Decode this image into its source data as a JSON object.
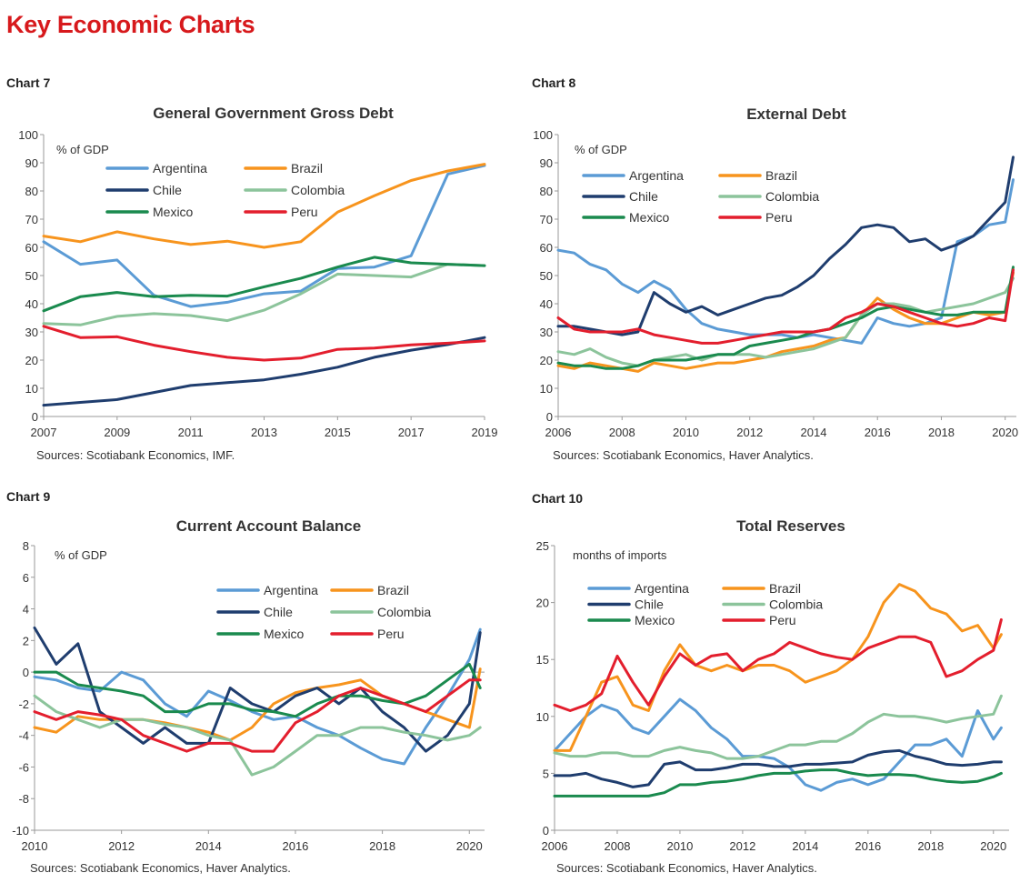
{
  "page_title": "Key Economic Charts",
  "charts": [
    {
      "label": "Chart 7",
      "source": "Sources: Scotiabank Economics, IMF."
    },
    {
      "label": "Chart 8",
      "source": "Sources: Scotiabank Economics, Haver Analytics."
    },
    {
      "label": "Chart 9",
      "source": "Sources: Scotiabank Economics, Haver Analytics."
    },
    {
      "label": "Chart 10",
      "source": "Sources: Scotiabank Economics, Haver Analytics."
    }
  ],
  "colors": {
    "Argentina": "#5b9bd5",
    "Brazil": "#f7941d",
    "Chile": "#1f3d6e",
    "Colombia": "#8cc49b",
    "Mexico": "#1a8a4e",
    "Peru": "#e31e2d",
    "title_red": "#d7191c"
  },
  "chart_data": [
    {
      "type": "line",
      "title": "General Government Gross Debt",
      "unit_label": "% of GDP",
      "xlim": [
        2007,
        2019
      ],
      "ylim": [
        0,
        100
      ],
      "y_ticks": [
        0,
        10,
        20,
        30,
        40,
        50,
        60,
        70,
        80,
        90,
        100
      ],
      "x_ticks": [
        "2007",
        "2009",
        "2011",
        "2013",
        "2015",
        "2017",
        "2019"
      ],
      "x": [
        2007,
        2008,
        2009,
        2010,
        2011,
        2012,
        2013,
        2014,
        2015,
        2016,
        2017,
        2018,
        2019
      ],
      "series": [
        {
          "name": "Argentina",
          "values": [
            62,
            54,
            55.5,
            43,
            39,
            40.5,
            43.5,
            44.5,
            52.5,
            53,
            57,
            86,
            89
          ]
        },
        {
          "name": "Brazil",
          "values": [
            64,
            62,
            65.5,
            63,
            61,
            62.2,
            60,
            62,
            72.5,
            78.3,
            83.7,
            87.1,
            89.5
          ]
        },
        {
          "name": "Chile",
          "values": [
            4,
            5,
            6,
            8.5,
            11,
            12,
            13,
            15,
            17.5,
            21,
            23.5,
            25.5,
            28
          ]
        },
        {
          "name": "Colombia",
          "values": [
            33,
            32.5,
            35.5,
            36.5,
            35.8,
            34,
            37.7,
            43.5,
            50.5,
            50,
            49.5,
            54,
            53.5
          ]
        },
        {
          "name": "Mexico",
          "values": [
            37.5,
            42.5,
            44,
            42.5,
            43,
            42.7,
            46,
            49,
            53,
            56.5,
            54.5,
            54,
            53.5
          ]
        },
        {
          "name": "Peru",
          "values": [
            32,
            28,
            28.3,
            25.3,
            23,
            21,
            20,
            20.7,
            23.8,
            24.3,
            25.4,
            26,
            26.8
          ]
        }
      ]
    },
    {
      "type": "line",
      "title": "External Debt",
      "unit_label": "% of GDP",
      "xlim": [
        2006,
        2020.35
      ],
      "ylim": [
        0,
        100
      ],
      "y_ticks": [
        0,
        10,
        20,
        30,
        40,
        50,
        60,
        70,
        80,
        90,
        100
      ],
      "x_ticks": [
        "2006",
        "2008",
        "2010",
        "2012",
        "2014",
        "2016",
        "2018",
        "2020"
      ],
      "x": [
        2006,
        2006.5,
        2007,
        2007.5,
        2008,
        2008.5,
        2009,
        2009.5,
        2010,
        2010.5,
        2011,
        2011.5,
        2012,
        2012.5,
        2013,
        2013.5,
        2014,
        2014.5,
        2015,
        2015.5,
        2016,
        2016.5,
        2017,
        2017.5,
        2018,
        2018.5,
        2019,
        2019.5,
        2020,
        2020.25
      ],
      "series": [
        {
          "name": "Argentina",
          "values": [
            59,
            58,
            54,
            52,
            47,
            44,
            48,
            45,
            38,
            33,
            31,
            30,
            29,
            29,
            29,
            28,
            29,
            28,
            27,
            26,
            35,
            33,
            32,
            33,
            35,
            62,
            64,
            68,
            69,
            84
          ]
        },
        {
          "name": "Brazil",
          "values": [
            18,
            17,
            19,
            18,
            17,
            16,
            19,
            18,
            17,
            18,
            19,
            19,
            20,
            21,
            23,
            24,
            25,
            27,
            28,
            36,
            42,
            38,
            35,
            33,
            33,
            35,
            37,
            36,
            37,
            51
          ]
        },
        {
          "name": "Chile",
          "values": [
            32,
            32,
            31,
            30,
            29,
            30,
            44,
            40,
            37,
            39,
            36,
            38,
            40,
            42,
            43,
            46,
            50,
            56,
            61,
            67,
            68,
            67,
            62,
            63,
            59,
            61,
            64,
            70,
            76,
            92
          ]
        },
        {
          "name": "Colombia",
          "values": [
            23,
            22,
            24,
            21,
            19,
            18,
            20,
            21,
            22,
            20,
            22,
            22,
            22,
            21,
            22,
            23,
            24,
            26,
            28,
            36,
            40,
            40,
            39,
            37,
            38,
            39,
            40,
            42,
            44,
            49
          ]
        },
        {
          "name": "Mexico",
          "values": [
            19,
            18,
            18,
            17,
            17,
            18,
            20,
            20,
            20,
            21,
            22,
            22,
            25,
            26,
            27,
            28,
            30,
            31,
            33,
            35,
            38,
            39,
            38,
            37,
            36,
            36,
            37,
            37,
            37,
            53
          ]
        },
        {
          "name": "Peru",
          "values": [
            35,
            31,
            30,
            30,
            30,
            31,
            29,
            28,
            27,
            26,
            26,
            27,
            28,
            29,
            30,
            30,
            30,
            31,
            35,
            37,
            40,
            39,
            37,
            35,
            33,
            32,
            33,
            35,
            34,
            52
          ]
        }
      ]
    },
    {
      "type": "line",
      "title": "Current Account  Balance",
      "unit_label": "% of GDP",
      "xlim": [
        2010,
        2020.35
      ],
      "ylim": [
        -10,
        8
      ],
      "y_ticks": [
        -10,
        -8,
        -6,
        -4,
        -2,
        0,
        2,
        4,
        6,
        8
      ],
      "x_ticks": [
        "2010",
        "2012",
        "2014",
        "2016",
        "2018",
        "2020"
      ],
      "x": [
        2010,
        2010.5,
        2011,
        2011.5,
        2012,
        2012.5,
        2013,
        2013.5,
        2014,
        2014.5,
        2015,
        2015.5,
        2016,
        2016.5,
        2017,
        2017.5,
        2018,
        2018.5,
        2019,
        2019.5,
        2020,
        2020.25
      ],
      "series": [
        {
          "name": "Argentina",
          "values": [
            -0.3,
            -0.5,
            -1,
            -1.2,
            0,
            -0.5,
            -2,
            -2.8,
            -1.2,
            -1.8,
            -2.5,
            -3,
            -2.8,
            -3.5,
            -4,
            -4.8,
            -5.5,
            -5.8,
            -3.5,
            -1.5,
            0.8,
            2.7
          ]
        },
        {
          "name": "Brazil",
          "values": [
            -3.5,
            -3.8,
            -2.8,
            -3,
            -3,
            -3,
            -3.2,
            -3.5,
            -3.8,
            -4.3,
            -3.5,
            -2,
            -1.3,
            -1,
            -0.8,
            -0.5,
            -1.5,
            -2,
            -2.5,
            -3,
            -3.5,
            0.2
          ]
        },
        {
          "name": "Chile",
          "values": [
            2.8,
            0.5,
            1.8,
            -2.5,
            -3.5,
            -4.5,
            -3.5,
            -4.5,
            -4.5,
            -1,
            -2,
            -2.5,
            -1.5,
            -1,
            -2,
            -1,
            -2.5,
            -3.5,
            -5,
            -4,
            -2,
            2.5
          ]
        },
        {
          "name": "Colombia",
          "values": [
            -1.5,
            -2.5,
            -3,
            -3.5,
            -3,
            -3,
            -3.3,
            -3.5,
            -4,
            -4.3,
            -6.5,
            -6,
            -5,
            -4,
            -4,
            -3.5,
            -3.5,
            -3.8,
            -4,
            -4.3,
            -4,
            -3.5
          ]
        },
        {
          "name": "Mexico",
          "values": [
            0,
            0,
            -0.8,
            -1,
            -1.2,
            -1.5,
            -2.5,
            -2.5,
            -2,
            -2,
            -2.4,
            -2.5,
            -2.8,
            -2,
            -1.5,
            -1.5,
            -1.8,
            -2,
            -1.5,
            -0.5,
            0.5,
            -1
          ]
        },
        {
          "name": "Peru",
          "values": [
            -2.5,
            -3,
            -2.5,
            -2.7,
            -3,
            -4,
            -4.5,
            -5,
            -4.5,
            -4.5,
            -5,
            -5,
            -3.2,
            -2.5,
            -1.5,
            -1,
            -1.5,
            -2,
            -2.5,
            -1.5,
            -0.5,
            -0.5
          ]
        }
      ]
    },
    {
      "type": "line",
      "title": "Total Reserves",
      "unit_label": "months of imports",
      "xlim": [
        2006,
        2020.5
      ],
      "ylim": [
        0,
        25
      ],
      "y_ticks": [
        0,
        5,
        10,
        15,
        20,
        25
      ],
      "x_ticks": [
        "2006",
        "2008",
        "2010",
        "2012",
        "2014",
        "2016",
        "2018",
        "2020"
      ],
      "x": [
        2006,
        2006.5,
        2007,
        2007.5,
        2008,
        2008.5,
        2009,
        2009.5,
        2010,
        2010.5,
        2011,
        2011.5,
        2012,
        2012.5,
        2013,
        2013.5,
        2014,
        2014.5,
        2015,
        2015.5,
        2016,
        2016.5,
        2017,
        2017.5,
        2018,
        2018.5,
        2019,
        2019.5,
        2020,
        2020.25
      ],
      "series": [
        {
          "name": "Argentina",
          "values": [
            7,
            8.5,
            10,
            11,
            10.5,
            9,
            8.5,
            10,
            11.5,
            10.5,
            9,
            8,
            6.5,
            6.5,
            6.3,
            5.5,
            4,
            3.5,
            4.2,
            4.5,
            4,
            4.5,
            6,
            7.5,
            7.5,
            8,
            6.5,
            10.5,
            8,
            9
          ]
        },
        {
          "name": "Brazil",
          "values": [
            7,
            7,
            10,
            13,
            13.5,
            11,
            10.5,
            14,
            16.3,
            14.5,
            14,
            14.5,
            14,
            14.5,
            14.5,
            14,
            13,
            13.5,
            14,
            15,
            17,
            20,
            21.6,
            21,
            19.5,
            19,
            17.5,
            18,
            16,
            17.2
          ]
        },
        {
          "name": "Chile",
          "values": [
            4.8,
            4.8,
            5,
            4.5,
            4.2,
            3.8,
            4,
            5.8,
            6,
            5.3,
            5.3,
            5.5,
            5.8,
            5.8,
            5.6,
            5.6,
            5.8,
            5.8,
            5.9,
            6,
            6.6,
            6.9,
            7,
            6.5,
            6.2,
            5.8,
            5.7,
            5.8,
            6,
            6
          ]
        },
        {
          "name": "Colombia",
          "values": [
            6.8,
            6.5,
            6.5,
            6.8,
            6.8,
            6.5,
            6.5,
            7,
            7.3,
            7,
            6.8,
            6.3,
            6.3,
            6.5,
            7,
            7.5,
            7.5,
            7.8,
            7.8,
            8.5,
            9.5,
            10.2,
            10,
            10,
            9.8,
            9.5,
            9.8,
            10,
            10.2,
            11.8
          ]
        },
        {
          "name": "Mexico",
          "values": [
            3,
            3,
            3,
            3,
            3,
            3,
            3,
            3.3,
            4,
            4,
            4.2,
            4.3,
            4.5,
            4.8,
            5,
            5,
            5.2,
            5.3,
            5.3,
            5,
            4.8,
            4.9,
            4.9,
            4.8,
            4.5,
            4.3,
            4.2,
            4.3,
            4.7,
            5
          ]
        },
        {
          "name": "Peru",
          "values": [
            11,
            10.5,
            11,
            12,
            15.3,
            13,
            11,
            13.5,
            15.5,
            14.5,
            15.3,
            15.5,
            14,
            15,
            15.5,
            16.5,
            16,
            15.5,
            15.2,
            15,
            16,
            16.5,
            17,
            17,
            16.5,
            13.5,
            14,
            15,
            15.8,
            18.5
          ]
        }
      ]
    }
  ]
}
